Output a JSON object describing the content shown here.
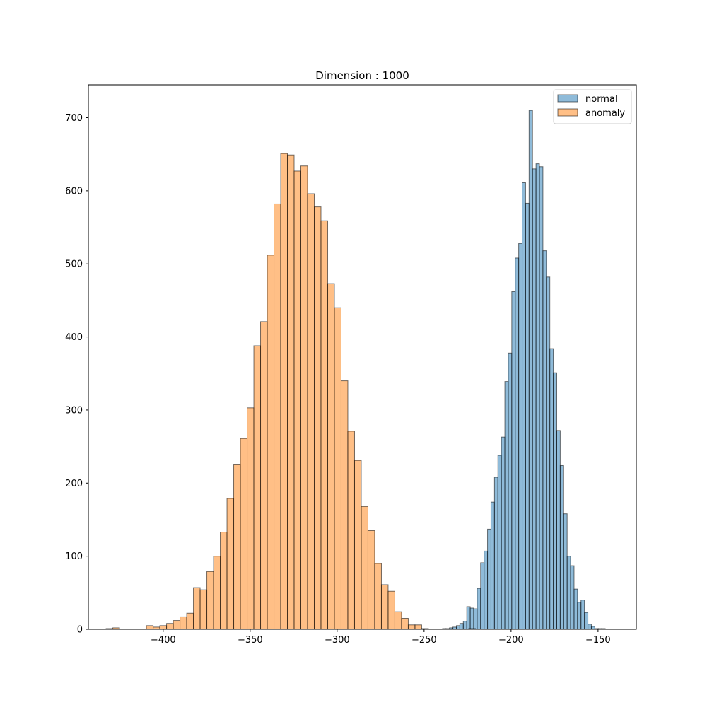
{
  "chart_data": {
    "type": "histogram",
    "title": "Dimension : 1000",
    "xlabel": "",
    "ylabel": "",
    "xlim": [
      -443,
      -128
    ],
    "ylim": [
      0,
      745
    ],
    "xticks": [
      -400,
      -350,
      -300,
      -250,
      -200,
      -150
    ],
    "xtick_labels": [
      "−400",
      "−350",
      "−300",
      "−250",
      "−200",
      "−150"
    ],
    "yticks": [
      0,
      100,
      200,
      300,
      400,
      500,
      600,
      700
    ],
    "ytick_labels": [
      "0",
      "100",
      "200",
      "300",
      "400",
      "500",
      "600",
      "700"
    ],
    "grid": false,
    "legend_position": "top-right",
    "series": [
      {
        "name": "normal",
        "color": "#1f77b4",
        "bin_start": -239.4,
        "bin_width": 1.99,
        "counts": [
          1,
          1,
          2,
          3,
          5,
          8,
          11,
          31,
          29,
          28,
          56,
          91,
          107,
          137,
          174,
          208,
          238,
          263,
          339,
          378,
          462,
          508,
          528,
          611,
          583,
          710,
          630,
          637,
          633,
          518,
          482,
          384,
          351,
          272,
          224,
          158,
          100,
          87,
          55,
          37,
          40,
          23,
          7,
          4,
          1,
          1,
          1
        ]
      },
      {
        "name": "anomaly",
        "color": "#ff7f0e",
        "bin_start": -432.8,
        "bin_width": 3.86,
        "counts": [
          1,
          2,
          0,
          0,
          0,
          0,
          5,
          3,
          5,
          8,
          12,
          17,
          22,
          57,
          54,
          79,
          100,
          133,
          179,
          225,
          261,
          303,
          388,
          421,
          512,
          582,
          651,
          649,
          627,
          634,
          596,
          578,
          559,
          473,
          440,
          340,
          271,
          231,
          168,
          135,
          90,
          61,
          52,
          24,
          15,
          6,
          6,
          1,
          0,
          0,
          0,
          0,
          0,
          0,
          1
        ]
      }
    ]
  }
}
